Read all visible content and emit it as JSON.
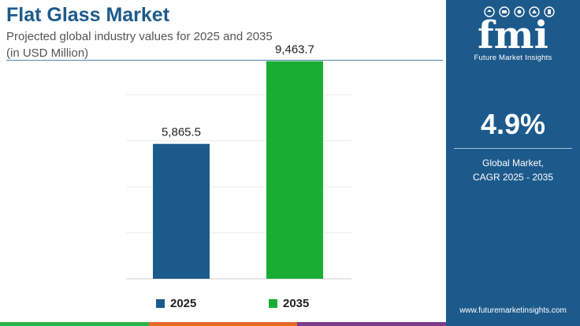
{
  "header": {
    "title": "Flat Glass Market",
    "subtitle_line1": "Projected global industry values for 2025 and 2035",
    "subtitle_line2": "(in USD Million)"
  },
  "colors": {
    "brand_blue": "#1d5a8c",
    "bar_2025": "#1d5a8c",
    "bar_2035": "#1aad34",
    "strip_green": "#2db34a",
    "strip_orange": "#e56a2a",
    "strip_purple": "#7b3a8c"
  },
  "chart_data": {
    "type": "bar",
    "categories": [
      "2025",
      "2035"
    ],
    "values": [
      5865.5,
      9463.7
    ],
    "value_labels": [
      "5,865.5",
      "9,463.7"
    ],
    "colors": [
      "#1d5a8c",
      "#1aad34"
    ],
    "ylim": [
      0,
      10500
    ],
    "grid": true,
    "legend_placement": "bottom"
  },
  "legend": {
    "items": [
      {
        "label": "2025",
        "color": "#1d5a8c"
      },
      {
        "label": "2035",
        "color": "#1aad34"
      }
    ]
  },
  "sidebar": {
    "logo_letters": "fmi",
    "logo_caption": "Future Market Insights",
    "cagr_value": "4.9%",
    "cagr_label_line1": "Global Market,",
    "cagr_label_line2": "CAGR 2025 - 2035",
    "website": "www.futuremarketinsights.com"
  }
}
